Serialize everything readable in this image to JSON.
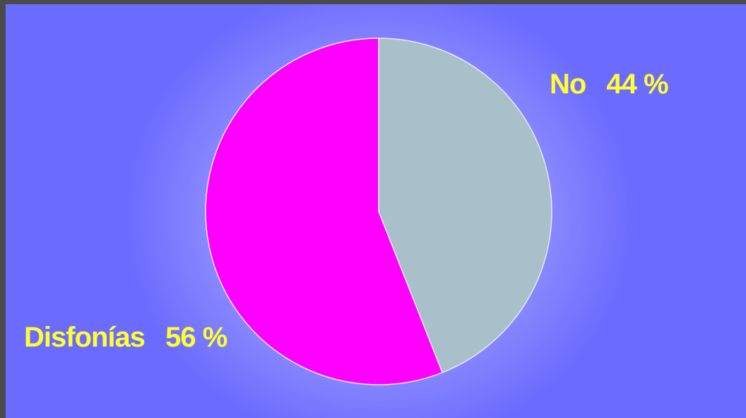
{
  "chart_data": {
    "type": "pie",
    "slices": [
      {
        "label": "No",
        "value": 44,
        "display": "44 %",
        "color": "#a9bfc9"
      },
      {
        "label": "Disfonías",
        "value": 56,
        "display": "56 %",
        "color": "#ff00ff"
      }
    ],
    "title": "",
    "label_color": "#ffff33",
    "background_color": "#6b6bff"
  }
}
